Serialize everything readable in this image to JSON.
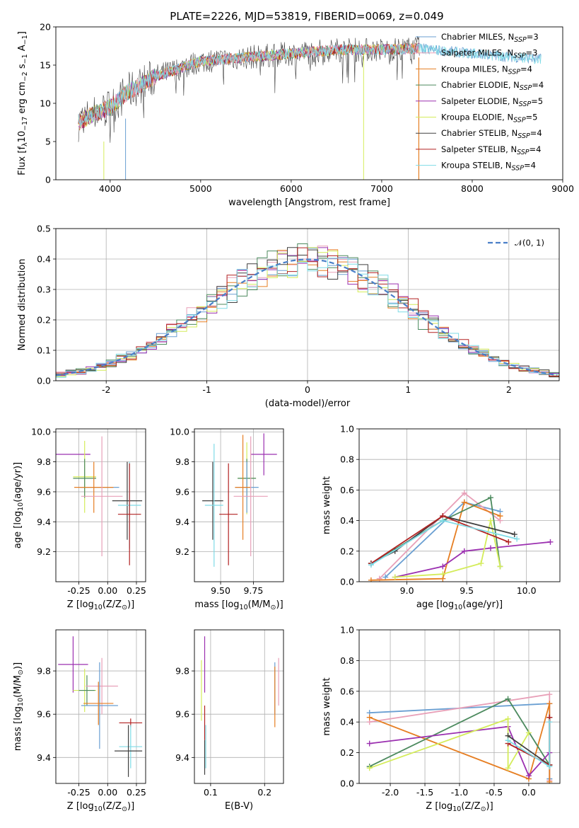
{
  "title": "PLATE=2226, MJD=53819, FIBERID=0069, z=0.049",
  "colors": {
    "s0": "#6a9fd2",
    "s1": "#e8a0b8",
    "s2": "#e67e22",
    "s3": "#4c8a5e",
    "s4": "#9b30b0",
    "s5": "#d4ec5a",
    "s6": "#404040",
    "s7": "#b22222",
    "s8": "#7fdbe6",
    "gauss": "#4a7fc8",
    "grid": "#b0b0b0"
  },
  "legend": {
    "series": [
      {
        "pre": "Chabrier MILES, N",
        "sub": "SSP",
        "post": "=3"
      },
      {
        "pre": "Salpeter MILES, N",
        "sub": "SSP",
        "post": "=3"
      },
      {
        "pre": "Kroupa MILES, N",
        "sub": "SSP",
        "post": "=4"
      },
      {
        "pre": "Chabrier ELODIE, N",
        "sub": "SSP",
        "post": "=4"
      },
      {
        "pre": "Salpeter ELODIE, N",
        "sub": "SSP",
        "post": "=5"
      },
      {
        "pre": "Kroupa ELODIE, N",
        "sub": "SSP",
        "post": "=5"
      },
      {
        "pre": "Chabrier STELIB, N",
        "sub": "SSP",
        "post": "=4"
      },
      {
        "pre": "Salpeter STELIB, N",
        "sub": "SSP",
        "post": "=4"
      },
      {
        "pre": "Kroupa STELIB, N",
        "sub": "SSP",
        "post": "=4"
      }
    ],
    "gauss_label": "𝒩(0, 1)"
  },
  "chart_data": [
    {
      "type": "line",
      "id": "spectrum",
      "xlabel": "wavelength [Angstrom, rest frame]",
      "ylabel_html": "Flux [f_λ 10^-17 erg cm^-2 s^-1 A^-1]",
      "ylabel_parts": [
        "Flux [f",
        "λ",
        "10",
        "−17",
        " erg cm",
        "−2",
        " s",
        "−1",
        " A",
        "−1",
        "]"
      ],
      "xlim": [
        3400,
        9000
      ],
      "ylim": [
        0,
        20
      ],
      "xticks": [
        4000,
        5000,
        6000,
        7000,
        8000,
        9000
      ],
      "yticks": [
        0,
        5,
        10,
        15,
        20
      ],
      "grid": false,
      "legend_position": "upper right",
      "approx_continuum": [
        [
          3650,
          7.5
        ],
        [
          3800,
          8.5
        ],
        [
          4000,
          9.5
        ],
        [
          4200,
          11.5
        ],
        [
          4500,
          13.5
        ],
        [
          5000,
          15.5
        ],
        [
          5500,
          16
        ],
        [
          6000,
          16.5
        ],
        [
          6500,
          17
        ],
        [
          7000,
          17
        ],
        [
          7400,
          17.2
        ],
        [
          8000,
          16.5
        ],
        [
          8500,
          16
        ],
        [
          8750,
          15.8
        ]
      ]
    },
    {
      "type": "bar",
      "id": "residual_hist",
      "xlabel": "(data-model)/error",
      "ylabel": "Normed distribution",
      "xlim": [
        -2.5,
        2.5
      ],
      "ylim": [
        0,
        0.5
      ],
      "xticks": [
        -2,
        -1,
        0,
        1,
        2
      ],
      "yticks": [
        0,
        0.1,
        0.2,
        0.3,
        0.4,
        0.5
      ],
      "grid": true,
      "legend_position": "upper right",
      "bin_width": 0.1,
      "gaussian": {
        "mean": 0,
        "sigma": 1
      }
    },
    {
      "type": "scatter",
      "id": "age_vs_Z",
      "xlabel_parts": [
        "Z [log",
        "10",
        "(Z/Z",
        "⊙",
        ")]"
      ],
      "ylabel_parts": [
        "age  [log",
        "10",
        "(age/yr)]"
      ],
      "xlim": [
        -0.45,
        0.33
      ],
      "ylim": [
        9.0,
        10.02
      ],
      "xticks": [
        -0.25,
        0.0,
        0.25
      ],
      "yticks": [
        9.2,
        9.4,
        9.6,
        9.8,
        10.0
      ],
      "grid": true,
      "points": [
        {
          "s": 0,
          "x": -0.07,
          "y": 9.63,
          "ex": 0.17,
          "ey": 0.0
        },
        {
          "s": 4,
          "x": -0.3,
          "y": 9.85,
          "ex": 0.15,
          "ey": 0.0
        },
        {
          "s": 5,
          "x": -0.2,
          "y": 9.7,
          "ex": 0.1,
          "ey": 0.24
        },
        {
          "s": 3,
          "x": -0.2,
          "y": 9.69,
          "ex": 0.1,
          "ey": 0.13
        },
        {
          "s": 2,
          "x": -0.12,
          "y": 9.63,
          "ex": 0.17,
          "ey": 0.17
        },
        {
          "s": 1,
          "x": -0.05,
          "y": 9.57,
          "ex": 0.18,
          "ey": 0.4
        },
        {
          "s": 6,
          "x": 0.17,
          "y": 9.54,
          "ex": 0.13,
          "ey": 0.26
        },
        {
          "s": 8,
          "x": 0.19,
          "y": 9.51,
          "ex": 0.1,
          "ey": 0.29
        },
        {
          "s": 7,
          "x": 0.19,
          "y": 9.45,
          "ex": 0.1,
          "ey": 0.34
        }
      ]
    },
    {
      "type": "scatter",
      "id": "age_vs_mass",
      "xlabel_parts": [
        "mass [log",
        "10",
        "(M/M",
        "⊙",
        ")]"
      ],
      "ylabel": "",
      "xlim": [
        9.3,
        9.98
      ],
      "ylim": [
        9.0,
        10.02
      ],
      "xticks": [
        9.5,
        9.75
      ],
      "yticks": [
        9.2,
        9.4,
        9.6,
        9.8,
        10.0
      ],
      "grid": true,
      "points": [
        {
          "s": 4,
          "x": 9.83,
          "y": 9.85,
          "ex": 0.1,
          "ey": 0.14
        },
        {
          "s": 5,
          "x": 9.7,
          "y": 9.69,
          "ex": 0.07,
          "ey": 0.24
        },
        {
          "s": 3,
          "x": 9.7,
          "y": 9.69,
          "ex": 0.07,
          "ey": 0.13
        },
        {
          "s": 0,
          "x": 9.7,
          "y": 9.63,
          "ex": 0.09,
          "ey": 0.17
        },
        {
          "s": 2,
          "x": 9.67,
          "y": 9.63,
          "ex": 0.06,
          "ey": 0.35
        },
        {
          "s": 1,
          "x": 9.73,
          "y": 9.57,
          "ex": 0.13,
          "ey": 0.4
        },
        {
          "s": 6,
          "x": 9.44,
          "y": 9.54,
          "ex": 0.08,
          "ey": 0.26
        },
        {
          "s": 8,
          "x": 9.45,
          "y": 9.51,
          "ex": 0.07,
          "ey": 0.41
        },
        {
          "s": 7,
          "x": 9.56,
          "y": 9.45,
          "ex": 0.07,
          "ey": 0.34
        }
      ]
    },
    {
      "type": "line",
      "id": "massweight_vs_age",
      "xlabel_parts": [
        "age  [log",
        "10",
        "(age/yr)]"
      ],
      "ylabel": "mass weight",
      "xlim": [
        8.6,
        10.28
      ],
      "ylim": [
        0,
        1.0
      ],
      "xticks": [
        9.0,
        9.5,
        10.0
      ],
      "yticks": [
        0.0,
        0.2,
        0.4,
        0.6,
        0.8,
        1.0
      ],
      "grid": true,
      "series": [
        {
          "s": 0,
          "points": [
            [
              8.82,
              0.03
            ],
            [
              9.48,
              0.52
            ],
            [
              9.78,
              0.46
            ]
          ]
        },
        {
          "s": 1,
          "points": [
            [
              8.77,
              0.02
            ],
            [
              9.48,
              0.58
            ],
            [
              9.78,
              0.4
            ]
          ]
        },
        {
          "s": 2,
          "points": [
            [
              8.7,
              0.01
            ],
            [
              9.3,
              0.02
            ],
            [
              9.48,
              0.52
            ],
            [
              9.78,
              0.43
            ]
          ]
        },
        {
          "s": 3,
          "points": [
            [
              8.7,
              0.12
            ],
            [
              9.3,
              0.4
            ],
            [
              9.7,
              0.55
            ],
            [
              9.78,
              0.1
            ]
          ]
        },
        {
          "s": 4,
          "points": [
            [
              8.9,
              0.03
            ],
            [
              9.3,
              0.1
            ],
            [
              9.48,
              0.2
            ],
            [
              9.7,
              0.22
            ],
            [
              10.2,
              0.26
            ]
          ]
        },
        {
          "s": 5,
          "points": [
            [
              8.9,
              0.03
            ],
            [
              9.3,
              0.05
            ],
            [
              9.62,
              0.12
            ],
            [
              9.7,
              0.4
            ],
            [
              9.78,
              0.1
            ]
          ]
        },
        {
          "s": 6,
          "points": [
            [
              8.7,
              0.12
            ],
            [
              8.9,
              0.2
            ],
            [
              9.3,
              0.43
            ],
            [
              9.9,
              0.31
            ]
          ]
        },
        {
          "s": 7,
          "points": [
            [
              8.7,
              0.12
            ],
            [
              9.3,
              0.43
            ],
            [
              9.85,
              0.26
            ]
          ]
        },
        {
          "s": 8,
          "points": [
            [
              8.7,
              0.11
            ],
            [
              9.3,
              0.4
            ],
            [
              9.92,
              0.28
            ]
          ]
        }
      ]
    },
    {
      "type": "scatter",
      "id": "mass_vs_Z",
      "xlabel_parts": [
        "Z [log",
        "10",
        "(Z/Z",
        "⊙",
        ")]"
      ],
      "ylabel_parts": [
        "mass [log",
        "10",
        "(M/M",
        "⊙",
        ")]"
      ],
      "xlim": [
        -0.45,
        0.33
      ],
      "ylim": [
        9.28,
        9.99
      ],
      "xticks": [
        -0.25,
        0.0,
        0.25
      ],
      "yticks": [
        9.4,
        9.6,
        9.8
      ],
      "grid": true,
      "points": [
        {
          "s": 4,
          "x": -0.3,
          "y": 9.83,
          "ex": 0.13,
          "ey": 0.13
        },
        {
          "s": 5,
          "x": -0.2,
          "y": 9.71,
          "ex": 0.1,
          "ey": 0.1
        },
        {
          "s": 3,
          "x": -0.18,
          "y": 9.71,
          "ex": 0.07,
          "ey": 0.07
        },
        {
          "s": 1,
          "x": -0.05,
          "y": 9.73,
          "ex": 0.14,
          "ey": 0.13
        },
        {
          "s": 0,
          "x": -0.07,
          "y": 9.64,
          "ex": 0.16,
          "ey": 0.2
        },
        {
          "s": 2,
          "x": -0.08,
          "y": 9.65,
          "ex": 0.13,
          "ey": 0.1
        },
        {
          "s": 7,
          "x": 0.2,
          "y": 9.56,
          "ex": 0.1,
          "ey": 0.02
        },
        {
          "s": 8,
          "x": 0.2,
          "y": 9.45,
          "ex": 0.1,
          "ey": 0.1
        },
        {
          "s": 6,
          "x": 0.18,
          "y": 9.43,
          "ex": 0.12,
          "ey": 0.12
        }
      ]
    },
    {
      "type": "scatter",
      "id": "mass_vs_ebv",
      "xlabel": "E(B-V)",
      "ylabel": "",
      "xlim": [
        0.07,
        0.235
      ],
      "ylim": [
        9.28,
        9.99
      ],
      "xticks": [
        0.1,
        0.2
      ],
      "yticks": [
        9.4,
        9.6,
        9.8
      ],
      "grid": true,
      "points": [
        {
          "s": 4,
          "x": 0.089,
          "y": 9.83,
          "ex": 0,
          "ey": 0.13
        },
        {
          "s": 5,
          "x": 0.083,
          "y": 9.71,
          "ex": 0,
          "ey": 0.14
        },
        {
          "s": 7,
          "x": 0.089,
          "y": 9.56,
          "ex": 0,
          "ey": 0.08
        },
        {
          "s": 8,
          "x": 0.091,
          "y": 9.45,
          "ex": 0,
          "ey": 0.1
        },
        {
          "s": 6,
          "x": 0.089,
          "y": 9.4,
          "ex": 0,
          "ey": 0.08
        },
        {
          "s": 0,
          "x": 0.219,
          "y": 9.72,
          "ex": 0,
          "ey": 0.12
        },
        {
          "s": 2,
          "x": 0.219,
          "y": 9.68,
          "ex": 0,
          "ey": 0.14
        },
        {
          "s": 1,
          "x": 0.226,
          "y": 9.75,
          "ex": 0,
          "ey": 0.11
        }
      ]
    },
    {
      "type": "line",
      "id": "massweight_vs_Z",
      "xlabel_parts": [
        "Z [log",
        "10",
        "(Z/Z",
        "⊙",
        ")]"
      ],
      "ylabel": "mass weight",
      "xlim": [
        -2.45,
        0.45
      ],
      "ylim": [
        0,
        1.0
      ],
      "xticks": [
        -2.0,
        -1.5,
        -1.0,
        -0.5,
        0.0
      ],
      "yticks": [
        0.0,
        0.2,
        0.4,
        0.6,
        0.8,
        1.0
      ],
      "grid": true,
      "series": [
        {
          "s": 0,
          "points": [
            [
              -2.3,
              0.46
            ],
            [
              0.3,
              0.52
            ],
            [
              0.3,
              0.03
            ]
          ]
        },
        {
          "s": 1,
          "points": [
            [
              -2.3,
              0.4
            ],
            [
              0.3,
              0.58
            ],
            [
              0.3,
              0.02
            ]
          ]
        },
        {
          "s": 2,
          "points": [
            [
              -2.3,
              0.43
            ],
            [
              0.0,
              0.03
            ],
            [
              0.3,
              0.52
            ],
            [
              0.3,
              0.01
            ]
          ]
        },
        {
          "s": 3,
          "points": [
            [
              -2.3,
              0.11
            ],
            [
              -0.3,
              0.55
            ],
            [
              0.3,
              0.12
            ]
          ]
        },
        {
          "s": 4,
          "points": [
            [
              -2.3,
              0.26
            ],
            [
              -0.3,
              0.37
            ],
            [
              0.0,
              0.05
            ],
            [
              0.3,
              0.2
            ]
          ]
        },
        {
          "s": 5,
          "points": [
            [
              -2.3,
              0.1
            ],
            [
              -0.3,
              0.42
            ],
            [
              -0.3,
              0.1
            ],
            [
              0.0,
              0.33
            ]
          ]
        },
        {
          "s": 6,
          "points": [
            [
              -0.3,
              0.31
            ],
            [
              0.3,
              0.12
            ],
            [
              0.3,
              0.43
            ]
          ]
        },
        {
          "s": 7,
          "points": [
            [
              -0.3,
              0.26
            ],
            [
              0.3,
              0.12
            ],
            [
              0.3,
              0.43
            ]
          ]
        },
        {
          "s": 8,
          "points": [
            [
              -0.3,
              0.28
            ],
            [
              0.3,
              0.11
            ],
            [
              0.3,
              0.4
            ]
          ]
        }
      ]
    }
  ]
}
